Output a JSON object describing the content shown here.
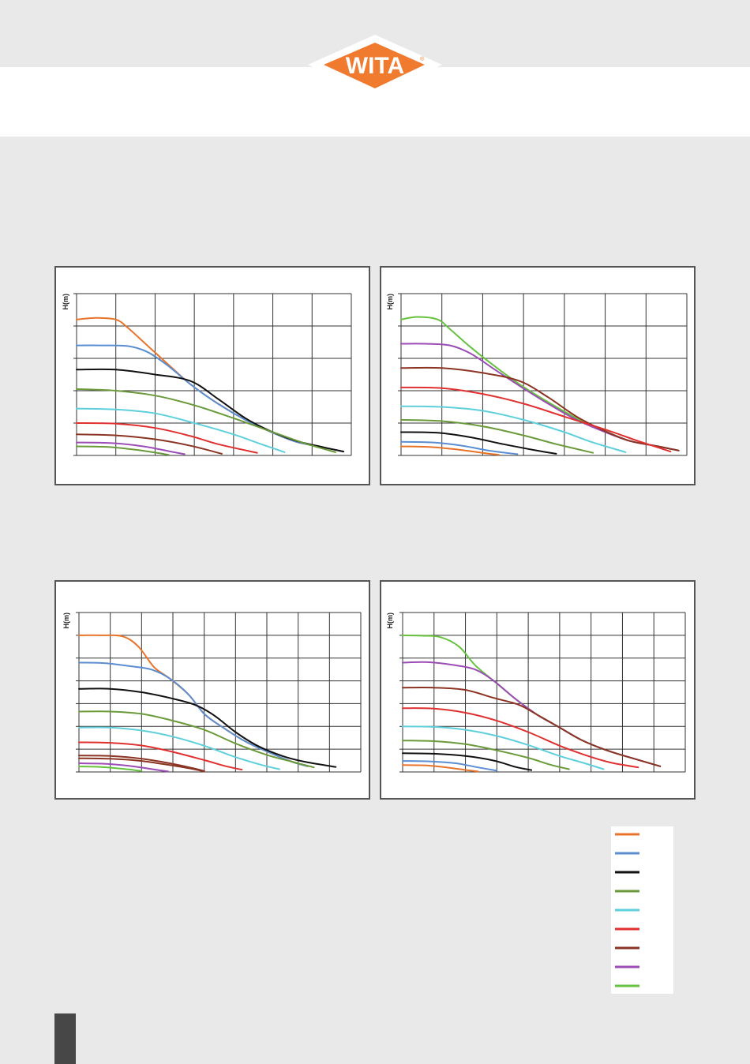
{
  "brand": {
    "logo_text": "WITA",
    "registered_mark": "®",
    "colors": {
      "logo_fill": "#f07a2e",
      "logo_border": "#ffffff",
      "logo_text": "#ffffff"
    }
  },
  "colors": {
    "orange": "#e8732a",
    "blue": "#5b8dd1",
    "black": "#111111",
    "olive": "#6a9a3a",
    "cyan": "#5fcfdc",
    "red": "#e03030",
    "brown": "#8b3424",
    "purple": "#9b4cb5",
    "green": "#66c23f",
    "grid": "#333333",
    "panel_border": "#555555"
  },
  "legend": {
    "colors": [
      "orange",
      "blue",
      "black",
      "olive",
      "cyan",
      "red",
      "brown",
      "purple",
      "green"
    ]
  },
  "chart_data": [
    {
      "type": "line",
      "ylabel": "H(m)",
      "grid": true,
      "x_divisions": 7,
      "y_divisions": 5,
      "xlim": [
        0,
        7
      ],
      "ylim": [
        0,
        5
      ],
      "series": [
        {
          "color": "orange",
          "x": [
            0,
            0.5,
            1.0,
            1.3,
            1.8,
            2.3,
            2.9,
            3.6,
            4.3,
            5.0,
            5.6,
            6.3,
            6.8
          ],
          "y": [
            4.2,
            4.25,
            4.2,
            3.95,
            3.4,
            2.85,
            2.2,
            1.6,
            1.1,
            0.7,
            0.42,
            0.25,
            0.12
          ]
        },
        {
          "color": "blue",
          "x": [
            0,
            0.6,
            1.3,
            1.8,
            2.3,
            2.9,
            3.6,
            4.3,
            5.0,
            5.6,
            6.3,
            6.8
          ],
          "y": [
            3.4,
            3.4,
            3.38,
            3.2,
            2.8,
            2.2,
            1.6,
            1.1,
            0.7,
            0.42,
            0.25,
            0.12
          ]
        },
        {
          "color": "black",
          "x": [
            0,
            1.0,
            2.0,
            2.9,
            3.6,
            4.3,
            5.0,
            5.6,
            6.3,
            6.8
          ],
          "y": [
            2.65,
            2.65,
            2.5,
            2.3,
            1.75,
            1.15,
            0.72,
            0.45,
            0.25,
            0.12
          ]
        },
        {
          "color": "olive",
          "x": [
            0,
            1.0,
            2.0,
            3.0,
            4.0,
            5.0,
            5.8,
            6.6
          ],
          "y": [
            2.05,
            2.0,
            1.85,
            1.55,
            1.15,
            0.72,
            0.38,
            0.1
          ]
        },
        {
          "color": "cyan",
          "x": [
            0,
            1.0,
            2.0,
            3.0,
            4.0,
            4.7,
            5.3
          ],
          "y": [
            1.45,
            1.42,
            1.3,
            1.0,
            0.65,
            0.35,
            0.1
          ]
        },
        {
          "color": "red",
          "x": [
            0,
            1.0,
            2.0,
            2.9,
            3.6,
            4.6
          ],
          "y": [
            1.0,
            0.98,
            0.85,
            0.6,
            0.35,
            0.08
          ]
        },
        {
          "color": "brown",
          "x": [
            0,
            1.0,
            2.0,
            2.9,
            3.7
          ],
          "y": [
            0.65,
            0.62,
            0.5,
            0.3,
            0.05
          ]
        },
        {
          "color": "purple",
          "x": [
            0,
            0.9,
            1.7,
            2.4,
            2.75
          ],
          "y": [
            0.4,
            0.38,
            0.28,
            0.12,
            0.04
          ]
        },
        {
          "color": "olive",
          "x": [
            0,
            0.8,
            1.6,
            2.35
          ],
          "y": [
            0.28,
            0.26,
            0.16,
            0.02
          ]
        }
      ]
    },
    {
      "type": "line",
      "ylabel": "H(m)",
      "grid": true,
      "x_divisions": 7,
      "y_divisions": 5,
      "xlim": [
        0,
        7
      ],
      "ylim": [
        0,
        5
      ],
      "series": [
        {
          "color": "green",
          "x": [
            0,
            0.4,
            0.9,
            1.2,
            1.7,
            2.3,
            2.9,
            3.6,
            4.3,
            5.0,
            5.6,
            6.3,
            6.8
          ],
          "y": [
            4.2,
            4.28,
            4.2,
            3.9,
            3.35,
            2.75,
            2.2,
            1.65,
            1.15,
            0.75,
            0.45,
            0.28,
            0.15
          ]
        },
        {
          "color": "purple",
          "x": [
            0,
            0.6,
            1.2,
            1.7,
            2.3,
            2.9,
            3.6,
            4.3,
            5.0,
            5.6,
            6.3,
            6.8
          ],
          "y": [
            3.45,
            3.45,
            3.4,
            3.15,
            2.65,
            2.15,
            1.6,
            1.1,
            0.72,
            0.45,
            0.28,
            0.15
          ]
        },
        {
          "color": "brown",
          "x": [
            0,
            1.0,
            2.0,
            2.9,
            3.6,
            4.3,
            5.0,
            5.6,
            6.3,
            6.8
          ],
          "y": [
            2.7,
            2.7,
            2.55,
            2.3,
            1.8,
            1.2,
            0.75,
            0.45,
            0.28,
            0.15
          ]
        },
        {
          "color": "red",
          "x": [
            0,
            1.0,
            2.0,
            3.0,
            4.0,
            5.0,
            5.8,
            6.6
          ],
          "y": [
            2.1,
            2.08,
            1.9,
            1.6,
            1.2,
            0.8,
            0.45,
            0.12
          ]
        },
        {
          "color": "cyan",
          "x": [
            0,
            1.0,
            2.0,
            3.0,
            4.0,
            4.7,
            5.5
          ],
          "y": [
            1.52,
            1.5,
            1.38,
            1.1,
            0.72,
            0.4,
            0.1
          ]
        },
        {
          "color": "olive",
          "x": [
            0,
            1.0,
            2.0,
            3.0,
            3.8,
            4.7
          ],
          "y": [
            1.1,
            1.06,
            0.9,
            0.62,
            0.35,
            0.08
          ]
        },
        {
          "color": "black",
          "x": [
            0,
            0.9,
            1.7,
            2.5,
            3.2,
            3.8
          ],
          "y": [
            0.72,
            0.7,
            0.56,
            0.35,
            0.18,
            0.05
          ]
        },
        {
          "color": "blue",
          "x": [
            0,
            0.8,
            1.5,
            2.2,
            2.85
          ],
          "y": [
            0.42,
            0.4,
            0.3,
            0.14,
            0.04
          ]
        },
        {
          "color": "orange",
          "x": [
            0,
            0.7,
            1.4,
            2.1,
            2.4
          ],
          "y": [
            0.28,
            0.26,
            0.18,
            0.06,
            0.02
          ]
        }
      ]
    },
    {
      "type": "line",
      "ylabel": "H(m)",
      "grid": true,
      "x_divisions": 9,
      "y_divisions": 7,
      "xlim": [
        0,
        9
      ],
      "ylim": [
        0,
        7
      ],
      "series": [
        {
          "color": "orange",
          "x": [
            0,
            0.7,
            1.4,
            1.9,
            2.4,
            2.9,
            3.5,
            4.0,
            4.6,
            5.3,
            6.0,
            6.8,
            7.3
          ],
          "y": [
            6.0,
            6.0,
            5.95,
            5.5,
            4.6,
            4.1,
            3.4,
            2.55,
            1.95,
            1.35,
            0.9,
            0.45,
            0.25
          ]
        },
        {
          "color": "blue",
          "x": [
            0,
            0.8,
            1.6,
            2.3,
            2.9,
            3.5,
            4.0,
            4.6,
            5.3,
            6.0,
            6.8,
            7.3
          ],
          "y": [
            4.8,
            4.78,
            4.65,
            4.5,
            4.1,
            3.4,
            2.55,
            1.95,
            1.35,
            0.9,
            0.45,
            0.25
          ]
        },
        {
          "color": "black",
          "x": [
            0,
            1.0,
            2.0,
            2.9,
            3.7,
            4.3,
            5.0,
            5.7,
            6.5,
            7.2,
            8.2
          ],
          "y": [
            3.65,
            3.65,
            3.5,
            3.25,
            2.95,
            2.5,
            1.75,
            1.15,
            0.7,
            0.45,
            0.22
          ]
        },
        {
          "color": "olive",
          "x": [
            0,
            1.0,
            2.0,
            3.0,
            4.0,
            5.0,
            6.0,
            6.8,
            7.5
          ],
          "y": [
            2.65,
            2.65,
            2.55,
            2.25,
            1.85,
            1.25,
            0.75,
            0.45,
            0.2
          ]
        },
        {
          "color": "cyan",
          "x": [
            0,
            1.0,
            2.0,
            3.0,
            4.0,
            5.0,
            5.8,
            6.4
          ],
          "y": [
            1.95,
            1.95,
            1.82,
            1.55,
            1.15,
            0.65,
            0.32,
            0.12
          ]
        },
        {
          "color": "red",
          "x": [
            0,
            1.0,
            2.0,
            3.0,
            4.0,
            4.7,
            5.2
          ],
          "y": [
            1.3,
            1.28,
            1.16,
            0.88,
            0.52,
            0.25,
            0.1
          ]
        },
        {
          "color": "brown",
          "x": [
            0,
            1.0,
            2.0,
            2.9,
            3.6,
            4.0
          ],
          "y": [
            0.72,
            0.7,
            0.58,
            0.38,
            0.18,
            0.04
          ]
        },
        {
          "color": "brown",
          "x": [
            0,
            1.0,
            2.0,
            2.9,
            3.6,
            4.0
          ],
          "y": [
            0.6,
            0.58,
            0.48,
            0.3,
            0.14,
            0.02
          ]
        },
        {
          "color": "purple",
          "x": [
            0,
            0.8,
            1.6,
            2.3,
            2.85
          ],
          "y": [
            0.38,
            0.36,
            0.27,
            0.13,
            0.02
          ]
        },
        {
          "color": "green",
          "x": [
            0,
            0.7,
            1.4,
            2.0
          ],
          "y": [
            0.24,
            0.22,
            0.14,
            0.04
          ]
        }
      ]
    },
    {
      "type": "line",
      "ylabel": "H(m)",
      "grid": true,
      "x_divisions": 9,
      "y_divisions": 7,
      "xlim": [
        0,
        9
      ],
      "ylim": [
        0,
        7
      ],
      "series": [
        {
          "color": "green",
          "x": [
            0,
            0.6,
            1.2,
            1.8,
            2.3,
            2.9,
            3.6,
            4.3,
            5.0,
            5.7,
            6.5,
            7.2,
            8.2
          ],
          "y": [
            6.0,
            5.98,
            5.92,
            5.5,
            4.7,
            4.0,
            3.2,
            2.5,
            1.95,
            1.4,
            0.95,
            0.65,
            0.25
          ]
        },
        {
          "color": "purple",
          "x": [
            0,
            0.8,
            1.6,
            2.3,
            2.9,
            3.6,
            4.3,
            5.0,
            5.7,
            6.5,
            7.2,
            8.2
          ],
          "y": [
            4.8,
            4.82,
            4.7,
            4.5,
            4.0,
            3.2,
            2.5,
            1.95,
            1.4,
            0.95,
            0.65,
            0.25
          ]
        },
        {
          "color": "brown",
          "x": [
            0,
            1.0,
            2.0,
            2.9,
            3.7,
            4.3,
            5.0,
            5.7,
            6.5,
            7.2,
            8.2
          ],
          "y": [
            3.7,
            3.7,
            3.6,
            3.25,
            2.95,
            2.5,
            1.95,
            1.4,
            0.95,
            0.65,
            0.25
          ]
        },
        {
          "color": "red",
          "x": [
            0,
            1.0,
            2.0,
            3.0,
            4.0,
            5.0,
            5.8,
            6.6,
            7.5
          ],
          "y": [
            2.8,
            2.78,
            2.6,
            2.25,
            1.75,
            1.15,
            0.75,
            0.42,
            0.2
          ]
        },
        {
          "color": "cyan",
          "x": [
            0,
            1.0,
            2.0,
            3.0,
            4.0,
            5.0,
            5.8,
            6.4
          ],
          "y": [
            2.0,
            1.98,
            1.85,
            1.58,
            1.18,
            0.7,
            0.38,
            0.12
          ]
        },
        {
          "color": "olive",
          "x": [
            0,
            1.0,
            2.0,
            3.0,
            4.0,
            4.7,
            5.3
          ],
          "y": [
            1.38,
            1.35,
            1.22,
            0.95,
            0.62,
            0.32,
            0.12
          ]
        },
        {
          "color": "black",
          "x": [
            0,
            1.0,
            2.0,
            2.9,
            3.6,
            4.1
          ],
          "y": [
            0.82,
            0.8,
            0.7,
            0.5,
            0.22,
            0.08
          ]
        },
        {
          "color": "blue",
          "x": [
            0,
            0.9,
            1.7,
            2.4,
            3.0
          ],
          "y": [
            0.48,
            0.46,
            0.38,
            0.2,
            0.06
          ]
        },
        {
          "color": "orange",
          "x": [
            0,
            0.7,
            1.4,
            2.1,
            2.4
          ],
          "y": [
            0.3,
            0.29,
            0.2,
            0.07,
            0.02
          ]
        }
      ]
    }
  ]
}
